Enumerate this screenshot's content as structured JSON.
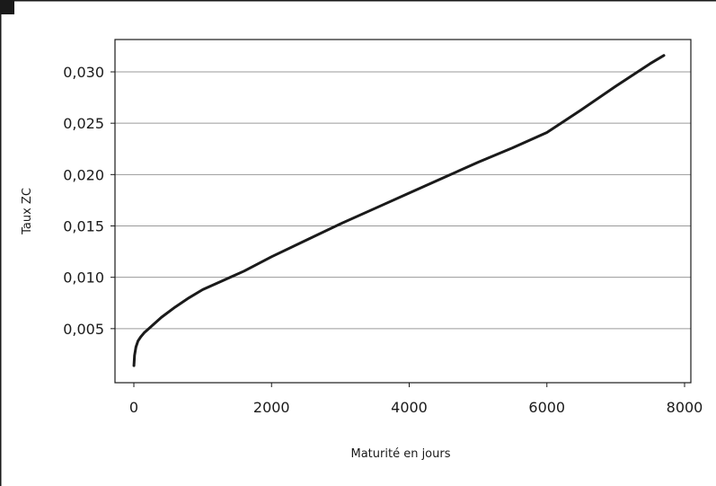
{
  "chart_data": {
    "type": "line",
    "title": "",
    "xlabel": "Maturité en jours",
    "ylabel": "Taux ZC",
    "xlim": [
      0,
      8000
    ],
    "ylim": [
      0,
      0.0325
    ],
    "x_ticks": [
      0,
      2000,
      4000,
      6000,
      8000
    ],
    "x_tick_labels": [
      "0",
      "2000",
      "4000",
      "6000",
      "8000"
    ],
    "y_ticks": [
      0.005,
      0.01,
      0.015,
      0.02,
      0.025,
      0.03
    ],
    "y_tick_labels": [
      "0,005",
      "0,010",
      "0,015",
      "0,020",
      "0,025",
      "0,030"
    ],
    "grid": "horizontal",
    "legend": "none",
    "series": [
      {
        "color": "#1a1a1a",
        "x": [
          1,
          10,
          30,
          60,
          100,
          150,
          200,
          300,
          400,
          600,
          800,
          1000,
          1300,
          1600,
          2000,
          2500,
          3000,
          3500,
          4000,
          4500,
          5000,
          5500,
          6000,
          6500,
          7000,
          7500,
          7700
        ],
        "y": [
          0.0014,
          0.0024,
          0.0032,
          0.0038,
          0.0042,
          0.0046,
          0.0049,
          0.0055,
          0.0061,
          0.0071,
          0.008,
          0.0088,
          0.0097,
          0.0106,
          0.012,
          0.0136,
          0.0152,
          0.0167,
          0.0182,
          0.0197,
          0.0212,
          0.0226,
          0.0241,
          0.0263,
          0.0286,
          0.0308,
          0.0316
        ]
      }
    ]
  },
  "colors": {
    "accent_block": "#1a1a1a",
    "grid": "#9a9a9a",
    "frame": "#1a1a1a"
  }
}
